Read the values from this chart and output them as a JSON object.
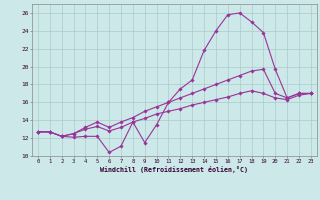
{
  "xlabel": "Windchill (Refroidissement éolien,°C)",
  "bg_color": "#cce8e8",
  "grid_color": "#aacccc",
  "line_color": "#993399",
  "xlim": [
    -0.5,
    23.5
  ],
  "ylim": [
    10,
    27
  ],
  "xticks": [
    0,
    1,
    2,
    3,
    4,
    5,
    6,
    7,
    8,
    9,
    10,
    11,
    12,
    13,
    14,
    15,
    16,
    17,
    18,
    19,
    20,
    21,
    22,
    23
  ],
  "yticks": [
    10,
    12,
    14,
    16,
    18,
    20,
    22,
    24,
    26
  ],
  "line1_x": [
    0,
    1,
    2,
    3,
    4,
    5,
    6,
    7,
    8,
    9,
    10,
    11,
    12,
    13,
    14,
    15,
    16,
    17,
    18,
    19,
    20,
    21,
    22,
    23
  ],
  "line1_y": [
    12.7,
    12.7,
    12.2,
    12.1,
    12.2,
    12.2,
    10.4,
    11.1,
    13.8,
    11.5,
    13.5,
    16.0,
    17.5,
    18.5,
    21.8,
    24.0,
    25.8,
    26.0,
    25.0,
    23.8,
    19.7,
    16.5,
    17.0,
    17.0
  ],
  "line2_x": [
    0,
    1,
    2,
    3,
    4,
    5,
    6,
    7,
    8,
    9,
    10,
    11,
    12,
    13,
    14,
    15,
    16,
    17,
    18,
    19,
    20,
    21,
    22,
    23
  ],
  "line2_y": [
    12.7,
    12.7,
    12.2,
    12.5,
    13.2,
    13.8,
    13.2,
    13.8,
    14.3,
    15.0,
    15.5,
    16.0,
    16.5,
    17.0,
    17.5,
    18.0,
    18.5,
    19.0,
    19.5,
    19.7,
    17.0,
    16.5,
    17.0,
    17.0
  ],
  "line3_x": [
    0,
    1,
    2,
    3,
    4,
    5,
    6,
    7,
    8,
    9,
    10,
    11,
    12,
    13,
    14,
    15,
    16,
    17,
    18,
    19,
    20,
    21,
    22,
    23
  ],
  "line3_y": [
    12.7,
    12.7,
    12.2,
    12.5,
    13.0,
    13.3,
    12.8,
    13.2,
    13.8,
    14.2,
    14.7,
    15.0,
    15.3,
    15.7,
    16.0,
    16.3,
    16.6,
    17.0,
    17.3,
    17.0,
    16.5,
    16.3,
    16.8,
    17.0
  ]
}
